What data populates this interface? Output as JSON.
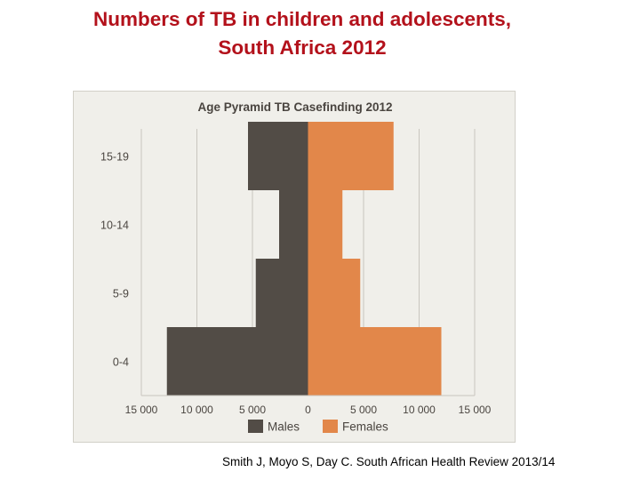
{
  "slide": {
    "title_line1": "Numbers of TB in children and adolescents,",
    "title_line2": "South Africa 2012",
    "citation": "Smith J, Moyo S, Day C. South African Health Review 2013/14"
  },
  "chart_data": {
    "type": "bar",
    "orientation": "horizontal",
    "title": "Age Pyramid TB Casefinding 2012",
    "categories": [
      "0-4",
      "5-9",
      "10-14",
      "15-19"
    ],
    "series": [
      {
        "name": "Males",
        "values": [
          12700,
          4700,
          2600,
          5400
        ],
        "color": "#524c46"
      },
      {
        "name": "Females",
        "values": [
          12000,
          4700,
          3100,
          7700
        ],
        "color": "#e2874a"
      }
    ],
    "xlim": [
      -15000,
      15000
    ],
    "x_ticks": [
      {
        "value": -15000,
        "label": "15 000"
      },
      {
        "value": -10000,
        "label": "10 000"
      },
      {
        "value": -5000,
        "label": "5 000"
      },
      {
        "value": 0,
        "label": "0"
      },
      {
        "value": 5000,
        "label": "5 000"
      },
      {
        "value": 10000,
        "label": "10 000"
      },
      {
        "value": 15000,
        "label": "15 000"
      }
    ],
    "legend": {
      "position": "bottom",
      "entries": [
        "Males",
        "Females"
      ]
    },
    "grid": true
  }
}
